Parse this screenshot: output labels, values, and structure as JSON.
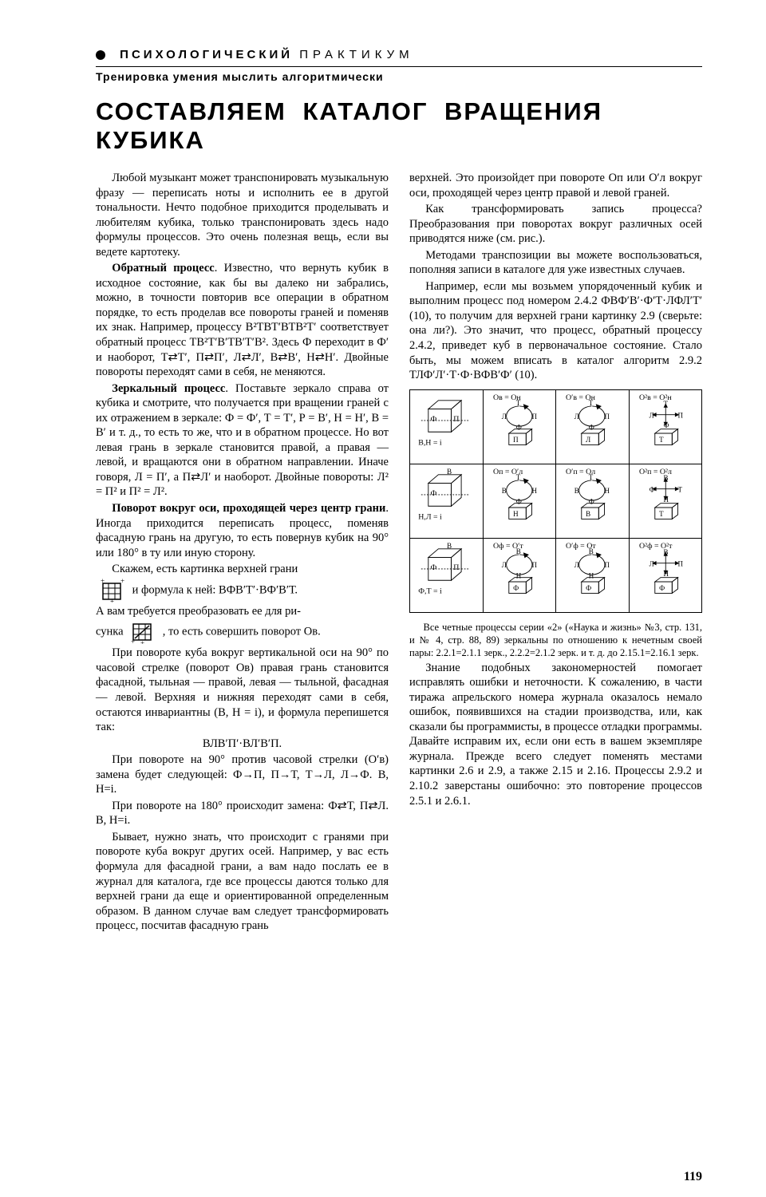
{
  "section": {
    "bullet": "●",
    "kicker_bold": "ПСИХОЛОГИЧЕСКИЙ",
    "kicker_light": "ПРАКТИКУМ"
  },
  "subheader": "Тренировка умения мыслить алгоритмически",
  "title": "СОСТАВЛЯЕМ КАТАЛОГ ВРАЩЕНИЯ КУБИКА",
  "left": {
    "p1": "Любой музыкант может транспонировать музыкальную фразу — переписать ноты и исполнить ее в другой тональности. Нечто подобное приходится проделывать и любителям кубика, только транспонировать здесь надо формулы процессов. Это очень полезная вещь, если вы ведете картотеку.",
    "p2a": "Обратный процесс",
    "p2b": ". Известно, что вернуть кубик в исходное состояние, как бы вы далеко ни забрались, можно, в точности повторив все операции в обратном порядке, то есть проделав все повороты граней и поменяв их знак. Например, процессу В²ТВТ′ВТВ²Т′ соответствует обратный процесс ТВ²Т′В′ТВ′Т′В². Здесь Ф переходит в Ф′ и наоборот, Т⇄Т′, П⇄П′, Л⇄Л′, В⇄В′, Н⇄Н′. Двойные повороты переходят сами в себя, не меняются.",
    "p3a": "Зеркальный процесс",
    "p3b": ". Поставьте зеркало справа от кубика и смотрите, что получается при вращении граней с их отражением в зеркале: Ф = Ф′, Т = Т′, Р = В′, Н = Н′, В = В′ и т. д., то есть то же, что и в обратном процессе. Но вот левая грань в зеркале становится правой, а правая — левой, и вращаются они в обратном направлении. Иначе говоря, Л = П′, а П⇄Л′ и наоборот. Двойные повороты: Л² = П² и П² = Л².",
    "p4a": "Поворот вокруг оси, проходящей через центр грани",
    "p4b": ". Иногда приходится переписать процесс, поменяв фасадную грань на другую, то есть повернув кубик на 90° или 180° в ту или иную сторону.",
    "p5": "Скажем, есть картинка верхней грани",
    "p5_formula": " и формула к ней: ВФВ′Т′·ВФ′В′Т.",
    "p6a": "А вам требуется преобразовать ее для ри-",
    "p6b": "сунка ",
    "p6c": " , то есть совершить поворот Ов.",
    "p7": "При повороте куба вокруг вертикальной оси на 90° по часовой стрелке (поворот Ов) правая грань становится фасадной, тыльная — правой, левая — тыльной, фасадная — левой. Верхняя и нижняя переходят сами в себя, остаются инвариантны (В, Н = і), и формула перепишется так:",
    "p7_formula": "ВЛВ′П′·ВЛ′В′П.",
    "p8": "При повороте на 90° против часовой стрелки (О′в) замена будет следующей: Ф→П, П→Т, Т→Л, Л→Ф. В, Н=і.",
    "p9": "При повороте на 180° происходит замена: Ф⇄Т, П⇄Л. В, Н=і.",
    "p10": "Бывает, нужно знать, что происходит с гранями при повороте куба вокруг других осей. Например, у вас есть формула для фасадной грани, а вам надо послать ее в журнал для каталога, где все процессы даются только для верхней грани да еще и ориентированной определенным образом. В данном случае вам следует трансформировать процесс, посчитав фасадную грань"
  },
  "right": {
    "p1": "верхней. Это произойдет при повороте Оп или О′л вокруг оси, проходящей через центр правой и левой граней.",
    "p2": "Как трансформировать запись процесса? Преобразования при поворотах вокруг различных осей приводятся ниже (см. рис.).",
    "p3": "Методами транспозиции вы можете воспользоваться, пополняя записи в каталоге для уже известных случаев.",
    "p4": "Например, если мы возьмем упорядоченный кубик и выполним процесс под номером 2.4.2 ФВФ′В′·Ф′Т·ЛФЛ′Т′ (10), то получим для верхней грани картинку 2.9 (сверьте: она ли?). Это значит, что процесс, обратный процессу 2.4.2, приведет куб в первоначальное состояние. Стало быть, мы можем вписать в каталог алгоритм 2.9.2 ТЛФ′Л′·Т·Ф·ВФВ′Ф′ (10).",
    "p5": "Все четные процессы серии «2» («Наука и жизнь» №3, стр. 131, и № 4, стр. 88, 89) зеркальны по отношению к нечетным своей пары: 2.2.1=2.1.1 зерк., 2.2.2=2.1.2 зерк. и т. д. до 2.15.1=2.16.1 зерк.",
    "p6": "Знание подобных закономерностей помогает исправлять ошибки и неточности. К сожалению, в части тиража апрельского номера журнала оказалось немало ошибок, появившихся на стадии производства, или, как сказали бы программисты, в процессе отладки программы. Давайте исправим их, если они есть в вашем экземпляре журнала. Прежде всего следует поменять местами картинки 2.6 и 2.9, а также 2.15 и 2.16. Процессы 2.9.2 и 2.10.2 заверстаны ошибочно: это повторение процессов 2.5.1 и 2.6.1."
  },
  "table": {
    "rows": [
      {
        "c0": {
          "top": "",
          "axis": "Ф   П",
          "inv": "В,Н = і"
        },
        "c1": {
          "eq": "Ов = Он",
          "letters": [
            "Т",
            "Л",
            "П",
            "Ф"
          ],
          "tile": "П"
        },
        "c2": {
          "eq": "О′в = Он",
          "letters": [
            "Т",
            "Л",
            "П",
            "Ф"
          ],
          "tile": "Л"
        },
        "c3": {
          "eq": "О²в = О²н",
          "letters": [
            "Т",
            "Л",
            "П",
            "Ф"
          ],
          "tile": "Т"
        }
      },
      {
        "c0": {
          "top": "В",
          "axis": "Ф",
          "inv": "Н,Л = і"
        },
        "c1": {
          "eq": "Оп = О′л",
          "letters": [
            "Т",
            "В",
            "Н",
            "Ф"
          ],
          "tile": "Н"
        },
        "c2": {
          "eq": "О′п = Ол",
          "letters": [
            "Т",
            "В",
            "Н",
            "Ф"
          ],
          "tile": "В"
        },
        "c3": {
          "eq": "О²п = О²л",
          "letters": [
            "В",
            "Ф",
            "Т",
            "Н"
          ],
          "tile": "Т"
        }
      },
      {
        "c0": {
          "top": "В",
          "axis": "Ф   П",
          "inv": "Ф,Т = і"
        },
        "c1": {
          "eq": "Оф = О′т",
          "letters": [
            "В",
            "Л",
            "П",
            "Н"
          ],
          "tile": "Ф"
        },
        "c2": {
          "eq": "О′ф = От",
          "letters": [
            "В",
            "Л",
            "П",
            "Н"
          ],
          "tile": "Ф"
        },
        "c3": {
          "eq": "О²ф = О²т",
          "letters": [
            "В",
            "Л",
            "П",
            "Н"
          ],
          "tile": "Ф"
        }
      }
    ]
  },
  "page_number": "119",
  "colors": {
    "fg": "#000000",
    "bg": "#ffffff"
  }
}
